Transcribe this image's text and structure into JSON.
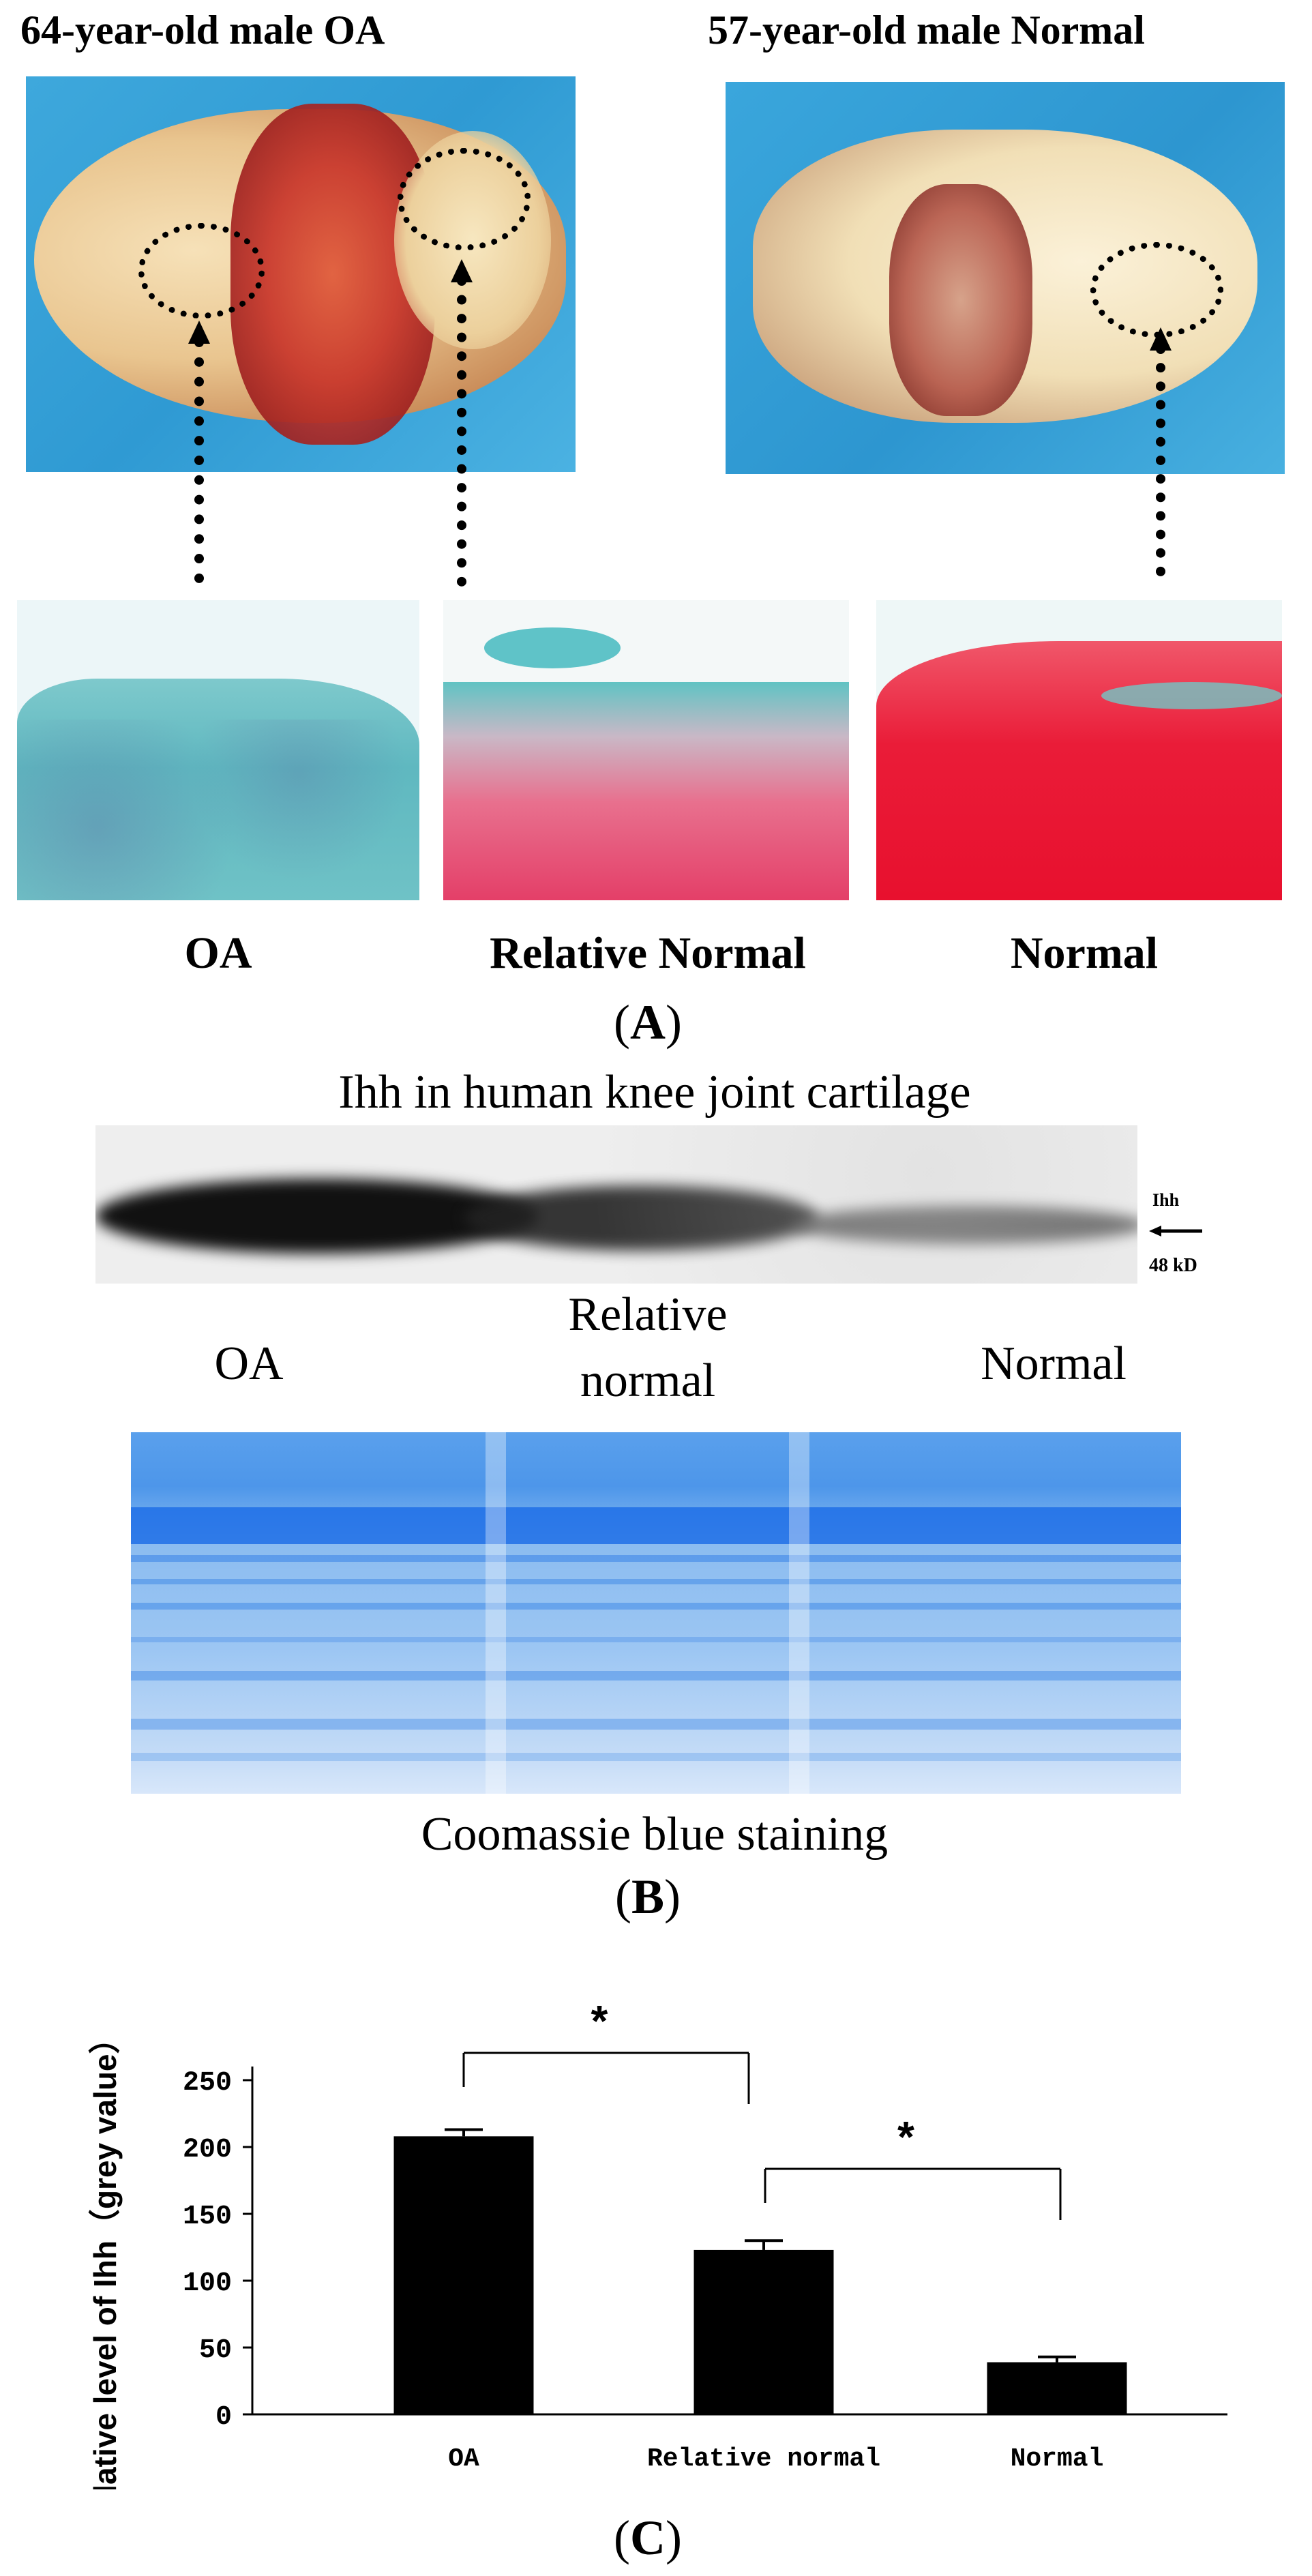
{
  "panel_a": {
    "oa_specimen_title": "64-year-old male OA",
    "normal_specimen_title": "57-year-old male Normal",
    "histology_labels": [
      "OA",
      "Relative Normal",
      "Normal"
    ],
    "label_open": "(",
    "label_letter": "A",
    "label_close": ")"
  },
  "panel_b": {
    "western_title": "Ihh in human knee joint cartilage",
    "protein_label": "Ihh",
    "weight_label": "48 kD",
    "lane_labels": {
      "oa": "OA",
      "relative_line1": "Relative",
      "relative_line2": "normal",
      "normal": "Normal"
    },
    "coomassie_caption": "Coomassie blue staining",
    "label_open": "(",
    "label_letter": "B",
    "label_close": ")"
  },
  "panel_c": {
    "label_open": "(",
    "label_letter": "C",
    "label_close": ")",
    "significance_marks": [
      "*",
      "*"
    ]
  },
  "chart_data": {
    "type": "bar",
    "categories": [
      "OA",
      "Relative normal",
      "Normal"
    ],
    "values": [
      208,
      123,
      39
    ],
    "errors": [
      5,
      7,
      4
    ],
    "ylabel": "Relative level of Ihh（grey value）",
    "xlabel": "",
    "ylim": [
      0,
      250
    ],
    "yticks": [
      0,
      50,
      100,
      150,
      200,
      250
    ],
    "grid": false,
    "bar_color": "#000000",
    "significance": [
      {
        "from": "OA",
        "to": "Relative normal",
        "label": "*"
      },
      {
        "from": "Relative normal",
        "to": "Normal",
        "label": "*"
      }
    ]
  }
}
